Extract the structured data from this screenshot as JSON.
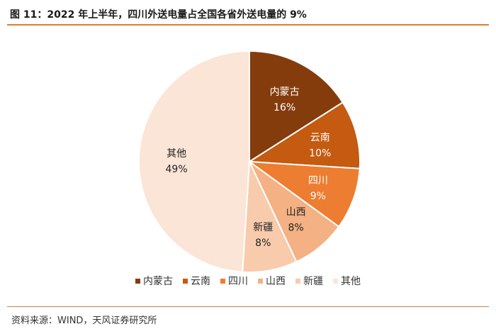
{
  "header": {
    "title": "图 11：2022 年上半年，四川外送电量占全国各省外送电量的 9%"
  },
  "footer": {
    "source": "资料来源：WIND，天风证券研究所"
  },
  "chart_data": {
    "type": "pie",
    "title": "",
    "unit": "%",
    "legend_position": "bottom",
    "start_angle": "12 o'clock, clockwise",
    "slices": [
      {
        "name": "内蒙古",
        "value": 16,
        "label": "16%",
        "color": "#843c0c"
      },
      {
        "name": "云南",
        "value": 10,
        "label": "10%",
        "color": "#c55a11"
      },
      {
        "name": "四川",
        "value": 9,
        "label": "9%",
        "color": "#ed7d31"
      },
      {
        "name": "山西",
        "value": 8,
        "label": "8%",
        "color": "#f4b183"
      },
      {
        "name": "新疆",
        "value": 8,
        "label": "8%",
        "color": "#f8cbad"
      },
      {
        "name": "其他",
        "value": 49,
        "label": "49%",
        "color": "#fbe5d6"
      }
    ]
  }
}
